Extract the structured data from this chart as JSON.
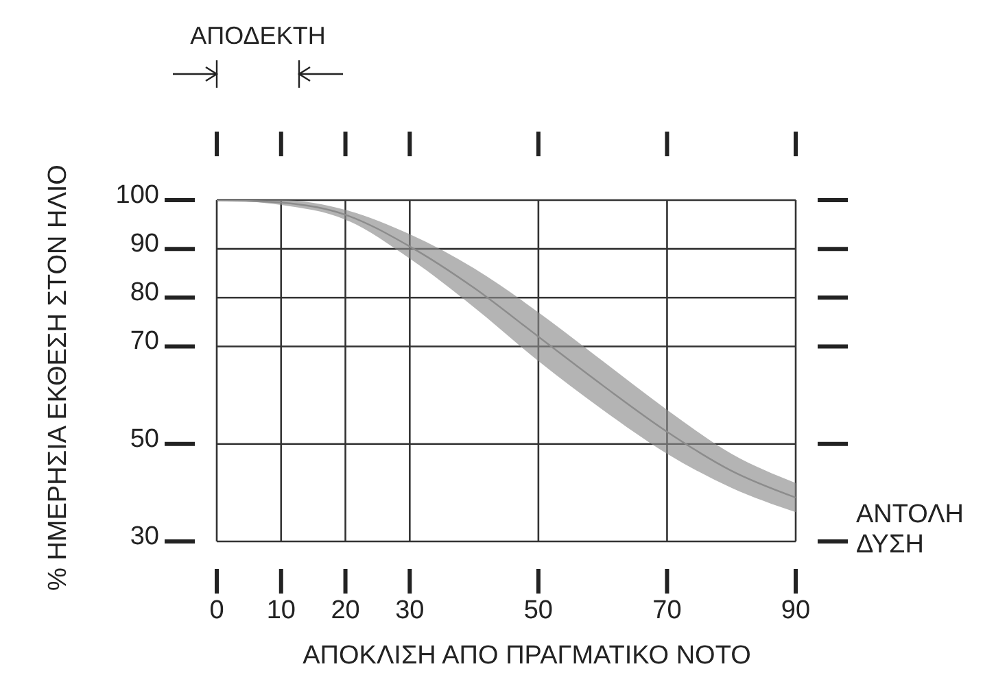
{
  "chart_data": {
    "type": "line",
    "xlabel": "ΑΠΟΚΛΙΣΗ ΑΠΟ ΠΡΑΓΜΑΤΙΚΟ ΝΟΤΟ",
    "ylabel": "% ΗΜΕΡΗΣΙΑ ΕΚΘΕΣΗ ΣΤΟΝ ΗΛΙΟ",
    "x": [
      0,
      10,
      20,
      30,
      40,
      50,
      60,
      70,
      80,
      90
    ],
    "series": [
      {
        "color": "#8c8c8c",
        "values": [
          100,
          99.5,
          97,
          90.5,
          82,
          72,
          62,
          52.5,
          44.5,
          39
        ],
        "lower": [
          100,
          99,
          96,
          88,
          78,
          67,
          57,
          48,
          41,
          36
        ],
        "upper": [
          100,
          100,
          98,
          93,
          86,
          77,
          67,
          57,
          48,
          42
        ]
      }
    ],
    "xlim": [
      0,
      90
    ],
    "xticks": [
      0,
      10,
      20,
      30,
      50,
      70,
      90
    ],
    "ylim": [
      30,
      100
    ],
    "yticks": [
      30,
      50,
      70,
      80,
      90,
      100
    ],
    "grid": true,
    "annotations": [
      "ΑΠΟΔΕΚΤΗ",
      "ΑΝΤΟΛΗ ΔΥΣΗ"
    ]
  }
}
